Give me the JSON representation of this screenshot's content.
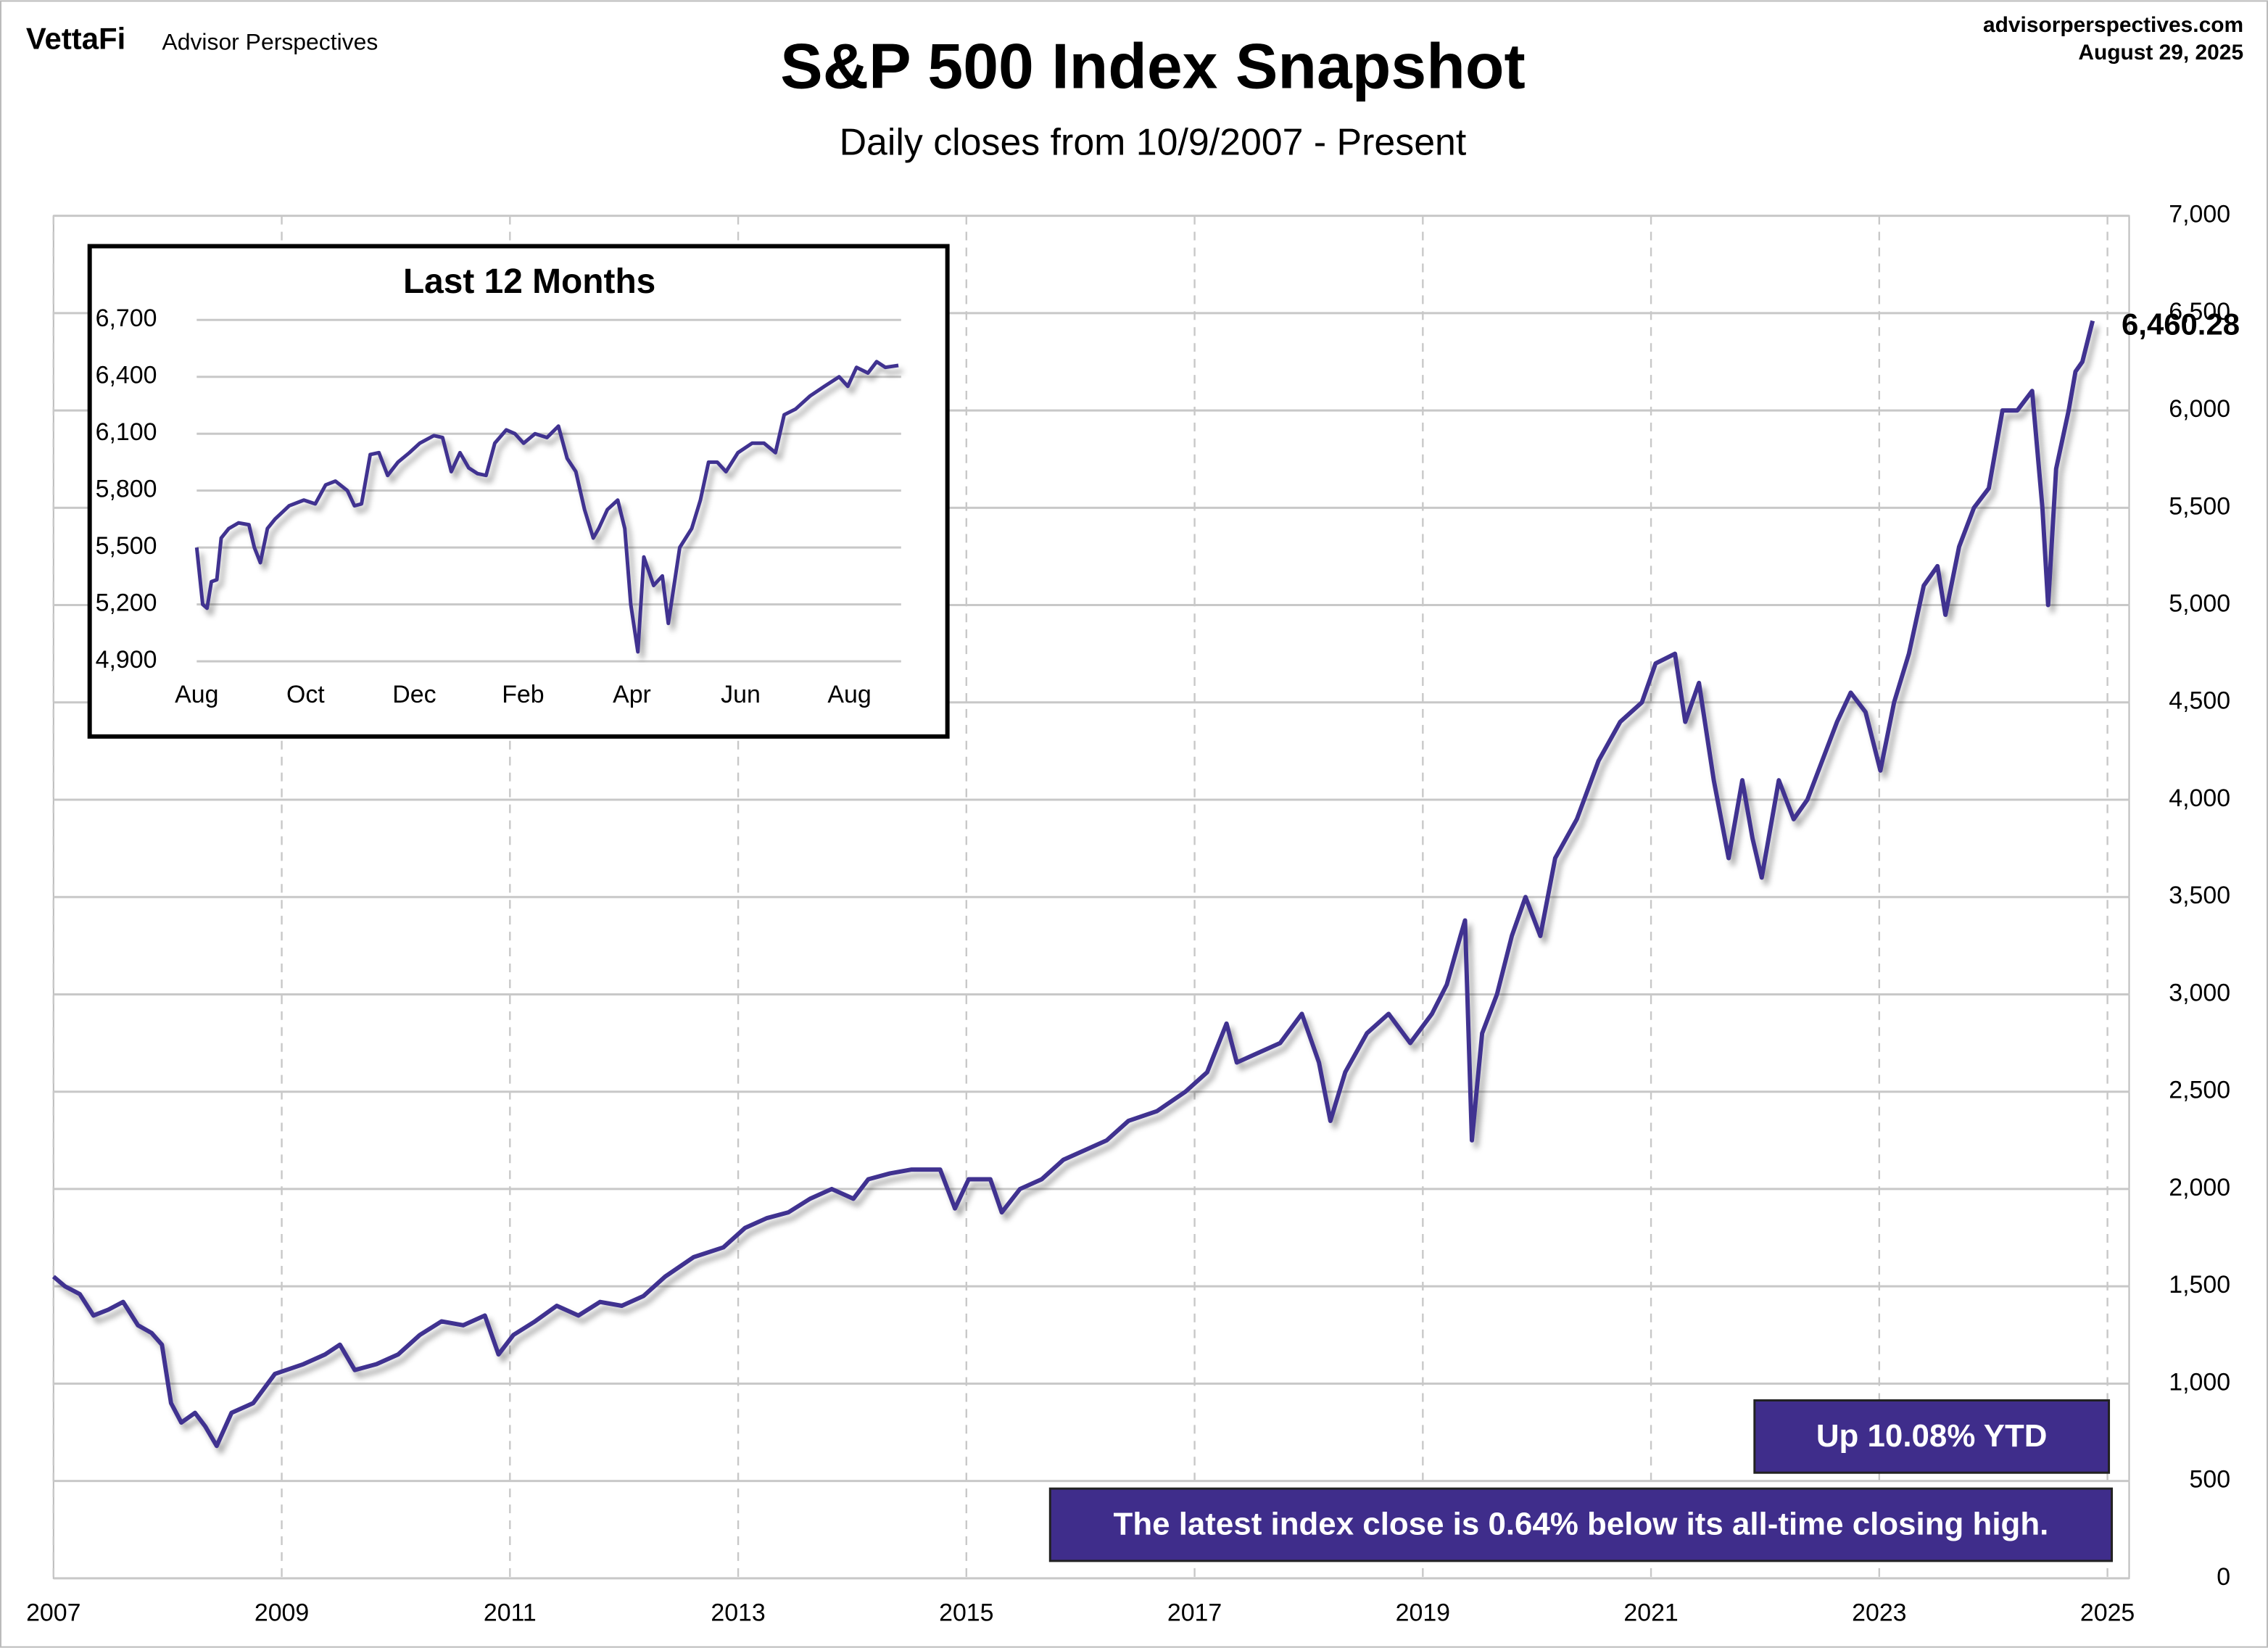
{
  "header": {
    "brand": "VettaFi",
    "publisher": "Advisor Perspectives",
    "site": "advisorperspectives.com",
    "date": "August 29, 2025"
  },
  "chart_data": [
    {
      "type": "line",
      "title": "S&P 500 Index Snapshot",
      "subtitle": "Daily closes from 10/9/2007 - Present",
      "x": [
        2007.0,
        2007.1,
        2007.23,
        2007.35,
        2007.48,
        2007.61,
        2007.74,
        2007.86,
        2007.95,
        2008.03,
        2008.12,
        2008.24,
        2008.33,
        2008.43,
        2008.56,
        2008.75,
        2008.94,
        2009.19,
        2009.38,
        2009.51,
        2009.64,
        2009.83,
        2010.02,
        2010.21,
        2010.4,
        2010.59,
        2010.78,
        2010.9,
        2011.03,
        2011.22,
        2011.41,
        2011.6,
        2011.79,
        2011.98,
        2012.17,
        2012.36,
        2012.61,
        2012.87,
        2013.06,
        2013.25,
        2013.44,
        2013.63,
        2013.82,
        2014.01,
        2014.14,
        2014.33,
        2014.52,
        2014.77,
        2014.9,
        2015.02,
        2015.21,
        2015.31,
        2015.47,
        2015.66,
        2015.85,
        2016.04,
        2016.23,
        2016.42,
        2016.67,
        2016.92,
        2017.11,
        2017.28,
        2017.37,
        2017.56,
        2017.75,
        2017.94,
        2018.09,
        2018.19,
        2018.32,
        2018.51,
        2018.7,
        2018.89,
        2019.08,
        2019.21,
        2019.33,
        2019.37,
        2019.43,
        2019.52,
        2019.65,
        2019.78,
        2019.9,
        2020.03,
        2020.16,
        2020.35,
        2020.54,
        2020.73,
        2020.92,
        2021.04,
        2021.21,
        2021.3,
        2021.42,
        2021.55,
        2021.68,
        2021.8,
        2021.89,
        2021.97,
        2022.12,
        2022.25,
        2022.37,
        2022.5,
        2022.63,
        2022.75,
        2022.88,
        2023.01,
        2023.13,
        2023.26,
        2023.39,
        2023.51,
        2023.58,
        2023.7,
        2023.83,
        2023.96,
        2024.08,
        2024.21,
        2024.34,
        2024.43,
        2024.48,
        2024.55,
        2024.66,
        2024.72,
        2024.78,
        2024.87
      ],
      "series": [
        {
          "color": "#3f3290",
          "values": [
            1550,
            1500,
            1460,
            1350,
            1380,
            1420,
            1300,
            1260,
            1200,
            900,
            800,
            850,
            780,
            680,
            850,
            900,
            1050,
            1100,
            1150,
            1200,
            1070,
            1100,
            1150,
            1250,
            1320,
            1300,
            1350,
            1150,
            1250,
            1320,
            1400,
            1350,
            1420,
            1400,
            1450,
            1550,
            1650,
            1700,
            1800,
            1850,
            1880,
            1950,
            2000,
            1950,
            2050,
            2080,
            2100,
            2100,
            1900,
            2050,
            2050,
            1880,
            2000,
            2050,
            2150,
            2200,
            2250,
            2350,
            2400,
            2500,
            2600,
            2850,
            2650,
            2700,
            2750,
            2900,
            2650,
            2350,
            2600,
            2800,
            2900,
            2750,
            2900,
            3050,
            3300,
            3380,
            2250,
            2800,
            3000,
            3300,
            3500,
            3300,
            3700,
            3900,
            4200,
            4400,
            4500,
            4700,
            4750,
            4400,
            4600,
            4100,
            3700,
            4100,
            3800,
            3600,
            4100,
            3900,
            4000,
            4200,
            4400,
            4550,
            4450,
            4150,
            4500,
            4750,
            5100,
            5200,
            4950,
            5300,
            5500,
            5600,
            6000,
            6000,
            6100,
            5500,
            5000,
            5700,
            6000,
            6200,
            6250,
            6460.28
          ],
          "value_labels": [
            null,
            null,
            null,
            null,
            null,
            null,
            null,
            null,
            null,
            null,
            null,
            null,
            null,
            null,
            null,
            null,
            null,
            null,
            null,
            null,
            null,
            null,
            null,
            null,
            null,
            null,
            null,
            null,
            null,
            null,
            null,
            null,
            null,
            null,
            null,
            null,
            null,
            null,
            null,
            null,
            null,
            null,
            null,
            null,
            null,
            null,
            null,
            null,
            null,
            null,
            null,
            null,
            null,
            null,
            null,
            null,
            null,
            null,
            null,
            null,
            null,
            null,
            null,
            null,
            null,
            null,
            null,
            null,
            null,
            null,
            null,
            null,
            null,
            null,
            null,
            null,
            null,
            null,
            null,
            null,
            null,
            null,
            null,
            null,
            null,
            null,
            null,
            null,
            null,
            null,
            null,
            null,
            null,
            null,
            null,
            null,
            null,
            null,
            null,
            null,
            null,
            null,
            null,
            null,
            null,
            null,
            null,
            null,
            null,
            null,
            null,
            null,
            null,
            null,
            null,
            null,
            null,
            null,
            null,
            null,
            null,
            "6,460.28"
          ]
        }
      ],
      "xlim": [
        2007,
        2025.19
      ],
      "xticks": [
        2007,
        2009,
        2011,
        2013,
        2015,
        2017,
        2019,
        2021,
        2023,
        2025
      ],
      "ylim": [
        0,
        7000
      ],
      "yticks": [
        0,
        500,
        {
          "value": 1000,
          "label": "1,000"
        },
        {
          "value": 1500,
          "label": "1,500"
        },
        {
          "value": 2000,
          "label": "2,000"
        },
        {
          "value": 2500,
          "label": "2,500"
        },
        {
          "value": 3000,
          "label": "3,000"
        },
        {
          "value": 3500,
          "label": "3,500"
        },
        {
          "value": 4000,
          "label": "4,000"
        },
        {
          "value": 4500,
          "label": "4,500"
        },
        {
          "value": 5000,
          "label": "5,000"
        },
        {
          "value": 5500,
          "label": "5,500"
        },
        {
          "value": 6000,
          "label": "6,000"
        },
        {
          "value": 6500,
          "label": "6,500"
        },
        {
          "value": 7000,
          "label": "7,000"
        }
      ],
      "grid": true,
      "annotation_color": "#3f2d8b",
      "annotations": [
        "Up 10.08% YTD",
        "The latest index close is 0.64% below its all-time closing high."
      ]
    },
    {
      "type": "line",
      "title": "Last 12 Months",
      "x": [
        0,
        0.11,
        0.19,
        0.27,
        0.37,
        0.45,
        0.59,
        0.77,
        0.96,
        1.06,
        1.17,
        1.3,
        1.44,
        1.7,
        1.97,
        2.18,
        2.37,
        2.55,
        2.77,
        2.9,
        3.03,
        3.19,
        3.35,
        3.51,
        3.7,
        3.91,
        4.1,
        4.36,
        4.52,
        4.68,
        4.84,
        5.0,
        5.16,
        5.32,
        5.48,
        5.69,
        5.85,
        6.01,
        6.22,
        6.44,
        6.65,
        6.81,
        6.97,
        7.13,
        7.29,
        7.39,
        7.55,
        7.74,
        7.87,
        7.98,
        8.11,
        8.22,
        8.4,
        8.56,
        8.67,
        8.88,
        9.1,
        9.26,
        9.41,
        9.57,
        9.73,
        9.95,
        10.21,
        10.43,
        10.64,
        10.8,
        11.01,
        11.28,
        11.54,
        11.81,
        11.97,
        12.13,
        12.34,
        12.5,
        12.66,
        12.9
      ],
      "series": [
        {
          "color": "#3f3290",
          "values": [
            5500,
            5200,
            5180,
            5320,
            5330,
            5550,
            5600,
            5630,
            5620,
            5500,
            5420,
            5600,
            5650,
            5720,
            5750,
            5730,
            5830,
            5850,
            5800,
            5720,
            5730,
            5990,
            6000,
            5880,
            5950,
            6000,
            6050,
            6090,
            6080,
            5900,
            6000,
            5920,
            5890,
            5880,
            6050,
            6120,
            6100,
            6050,
            6100,
            6080,
            6140,
            5970,
            5900,
            5700,
            5550,
            5600,
            5700,
            5750,
            5600,
            5200,
            4950,
            5450,
            5300,
            5350,
            5100,
            5500,
            5600,
            5750,
            5950,
            5950,
            5900,
            6000,
            6050,
            6050,
            6000,
            6200,
            6230,
            6300,
            6350,
            6400,
            6350,
            6450,
            6420,
            6480,
            6450,
            6460.28
          ]
        }
      ],
      "xlim": [
        0,
        12.95
      ],
      "xticks": [
        {
          "value": 0,
          "label": "Aug"
        },
        {
          "value": 2,
          "label": "Oct"
        },
        {
          "value": 4,
          "label": "Dec"
        },
        {
          "value": 6,
          "label": "Feb"
        },
        {
          "value": 8,
          "label": "Apr"
        },
        {
          "value": 10,
          "label": "Jun"
        },
        {
          "value": 12,
          "label": "Aug"
        }
      ],
      "ylim": [
        4900,
        6700
      ],
      "yticks": [
        {
          "value": 4900,
          "label": "4,900"
        },
        {
          "value": 5200,
          "label": "5,200"
        },
        {
          "value": 5500,
          "label": "5,500"
        },
        {
          "value": 5800,
          "label": "5,800"
        },
        {
          "value": 6100,
          "label": "6,100"
        },
        {
          "value": 6400,
          "label": "6,400"
        },
        {
          "value": 6700,
          "label": "6,700"
        }
      ],
      "grid": true
    }
  ]
}
